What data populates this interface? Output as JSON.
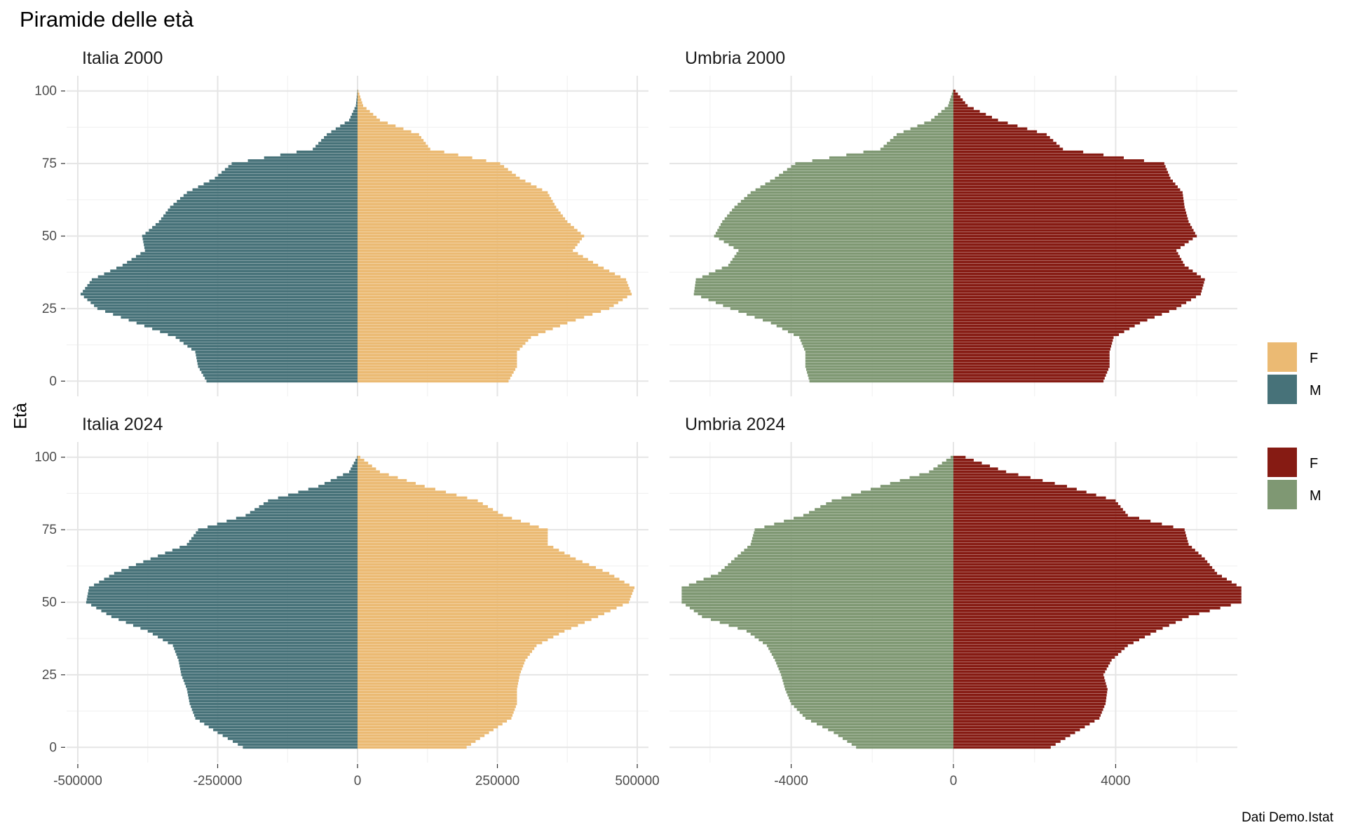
{
  "title": "Piramide delle età",
  "ylabel": "Età",
  "caption": "Dati Demo.Istat",
  "colors": {
    "italia_F": "#EBBA73",
    "italia_M": "#477279",
    "umbria_F": "#861B13",
    "umbria_M": "#7F9873",
    "grid_major": "#e5e5e5",
    "grid_minor": "#f2f2f2",
    "axis_text": "#4d4d4d"
  },
  "legends": [
    {
      "entries": [
        {
          "label": "F",
          "color": "#EBBA73"
        },
        {
          "label": "M",
          "color": "#477279"
        }
      ]
    },
    {
      "entries": [
        {
          "label": "F",
          "color": "#861B13"
        },
        {
          "label": "M",
          "color": "#7F9873"
        }
      ]
    }
  ],
  "chart_data": [
    {
      "type": "bar",
      "orientation": "horizontal",
      "title": "Italia 2000",
      "ylim": [
        0,
        100
      ],
      "yticks": [
        0,
        25,
        50,
        75,
        100
      ],
      "xlim": [
        -520000,
        520000
      ],
      "xticks": [
        -500000,
        -250000,
        0,
        250000,
        500000
      ],
      "series": [
        {
          "name": "F",
          "age_start": 0,
          "age_step": 5,
          "values": [
            270000,
            285000,
            285000,
            310000,
            375000,
            450000,
            490000,
            480000,
            430000,
            385000,
            405000,
            375000,
            355000,
            340000,
            290000,
            255000,
            130000,
            110000,
            40000,
            10000,
            1500
          ]
        },
        {
          "name": "M",
          "age_start": 0,
          "age_step": 5,
          "values": [
            -270000,
            -285000,
            -290000,
            -325000,
            -395000,
            -465000,
            -495000,
            -475000,
            -420000,
            -380000,
            -385000,
            -355000,
            -335000,
            -305000,
            -255000,
            -225000,
            -80000,
            -55000,
            -15000,
            -3000,
            -300
          ]
        }
      ]
    },
    {
      "type": "bar",
      "orientation": "horizontal",
      "title": "Umbria 2000",
      "ylim": [
        0,
        100
      ],
      "yticks": [
        0,
        25,
        50,
        75,
        100
      ],
      "xlim": [
        -7000,
        7000
      ],
      "xticks": [
        -4000,
        0,
        4000
      ],
      "series": [
        {
          "name": "F",
          "age_start": 0,
          "age_step": 5,
          "values": [
            3700,
            3850,
            3850,
            3950,
            4600,
            5500,
            6100,
            6200,
            5700,
            5500,
            6000,
            5800,
            5700,
            5650,
            5350,
            5200,
            2700,
            2300,
            1100,
            350,
            50
          ]
        },
        {
          "name": "M",
          "age_start": 0,
          "age_step": 5,
          "values": [
            -3550,
            -3650,
            -3650,
            -3800,
            -4500,
            -5500,
            -6400,
            -6350,
            -5550,
            -5300,
            -5900,
            -5700,
            -5400,
            -5000,
            -4400,
            -3900,
            -1800,
            -1400,
            -550,
            -130,
            -15
          ]
        }
      ]
    },
    {
      "type": "bar",
      "orientation": "horizontal",
      "title": "Italia 2024",
      "ylim": [
        0,
        100
      ],
      "yticks": [
        0,
        25,
        50,
        75,
        100
      ],
      "xlim": [
        -520000,
        520000
      ],
      "xticks": [
        -500000,
        -250000,
        0,
        250000,
        500000
      ],
      "series": [
        {
          "name": "F",
          "age_start": 0,
          "age_step": 5,
          "values": [
            195000,
            235000,
            275000,
            285000,
            285000,
            290000,
            300000,
            320000,
            370000,
            430000,
            485000,
            495000,
            450000,
            390000,
            340000,
            340000,
            260000,
            215000,
            120000,
            40000,
            5000
          ]
        },
        {
          "name": "M",
          "age_start": 0,
          "age_step": 5,
          "values": [
            -205000,
            -250000,
            -290000,
            -300000,
            -305000,
            -315000,
            -320000,
            -330000,
            -375000,
            -440000,
            -485000,
            -480000,
            -435000,
            -370000,
            -305000,
            -285000,
            -200000,
            -160000,
            -70000,
            -15000,
            -1000
          ]
        }
      ]
    },
    {
      "type": "bar",
      "orientation": "horizontal",
      "title": "Umbria 2024",
      "ylim": [
        0,
        100
      ],
      "yticks": [
        0,
        25,
        50,
        75,
        100
      ],
      "xlim": [
        -7000,
        7000
      ],
      "xticks": [
        -4000,
        0,
        4000
      ],
      "series": [
        {
          "name": "F",
          "age_start": 0,
          "age_step": 5,
          "values": [
            2400,
            3000,
            3600,
            3750,
            3800,
            3700,
            3900,
            4300,
            5000,
            5800,
            7100,
            7100,
            6500,
            6200,
            5800,
            5700,
            4300,
            4000,
            2800,
            1300,
            300
          ]
        },
        {
          "name": "M",
          "age_start": 0,
          "age_step": 5,
          "values": [
            -2400,
            -2950,
            -3650,
            -4000,
            -4150,
            -4250,
            -4400,
            -4600,
            -5100,
            -6200,
            -6700,
            -6700,
            -5800,
            -5400,
            -5000,
            -4900,
            -3700,
            -3000,
            -1800,
            -600,
            -70
          ]
        }
      ]
    }
  ]
}
